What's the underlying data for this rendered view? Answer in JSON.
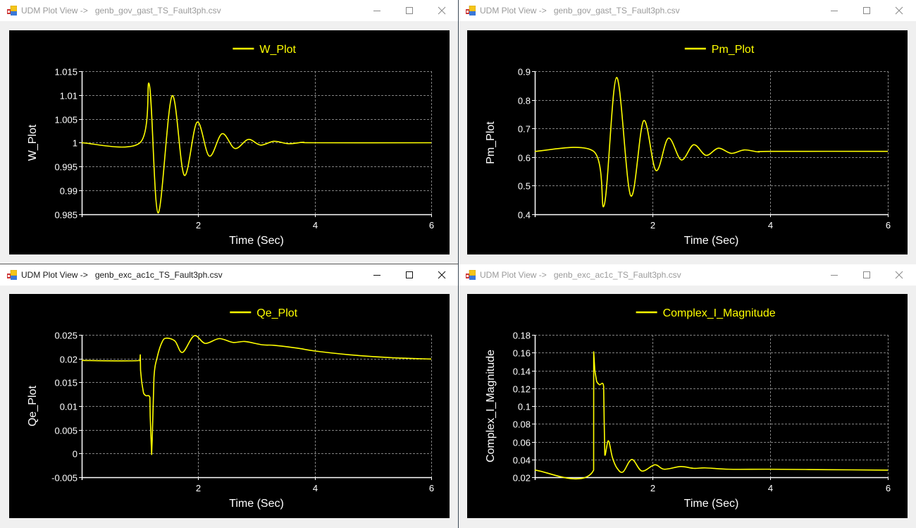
{
  "windows": [
    {
      "id": "w_plot",
      "app_title": "UDM Plot View ->",
      "file": "genb_gov_gast_TS_Fault3ph.csv",
      "active": false,
      "controls": {
        "minimize": "minimize",
        "maximize": "maximize",
        "close": "close"
      }
    },
    {
      "id": "pm_plot",
      "app_title": "UDM Plot View ->",
      "file": "genb_gov_gast_TS_Fault3ph.csv",
      "active": false,
      "controls": {
        "minimize": "minimize",
        "maximize": "maximize",
        "close": "close"
      }
    },
    {
      "id": "qe_plot",
      "app_title": "UDM Plot View ->",
      "file": "genb_exc_ac1c_TS_Fault3ph.csv",
      "active": true,
      "controls": {
        "minimize": "minimize",
        "maximize": "maximize",
        "close": "close"
      }
    },
    {
      "id": "complex_i_plot",
      "app_title": "UDM Plot View ->",
      "file": "genb_exc_ac1c_TS_Fault3ph.csv",
      "active": false,
      "controls": {
        "minimize": "minimize",
        "maximize": "maximize",
        "close": "close"
      }
    }
  ],
  "colors": {
    "series": "#ffff00",
    "background": "#000000",
    "axis": "#ffffff",
    "grid": "#808080",
    "legend_text": "#ffff00",
    "tick_text": "#ffffff"
  },
  "chart_data": [
    {
      "type": "line",
      "title": "W_Plot",
      "legend": [
        "W_Plot"
      ],
      "legend_position": "top",
      "xlabel": "Time (Sec)",
      "ylabel": "W_Plot",
      "xlim": [
        0,
        6
      ],
      "ylim": [
        0.985,
        1.015
      ],
      "xticks": [
        2,
        4,
        6
      ],
      "yticks": [
        0.985,
        0.99,
        0.995,
        1,
        1.005,
        1.01,
        1.015
      ],
      "ytick_labels": [
        "0.985",
        "0.99",
        "0.995",
        "1",
        "1.005",
        "1.01",
        "1.015"
      ],
      "grid": true,
      "series": [
        {
          "name": "W_Plot",
          "x": [
            0,
            1.0,
            1.16,
            1.31,
            1.55,
            1.76,
            1.98,
            2.19,
            2.41,
            2.63,
            2.86,
            3.07,
            3.3,
            3.55,
            3.8,
            4.0,
            6.0
          ],
          "values": [
            1.0,
            1.0,
            1.0122,
            0.9853,
            1.0098,
            0.9932,
            1.0043,
            0.9972,
            1.0019,
            0.9988,
            1.0007,
            0.9995,
            1.0003,
            0.9998,
            1.0001,
            1.0,
            1.0
          ]
        }
      ]
    },
    {
      "type": "line",
      "title": "Pm_Plot",
      "legend": [
        "Pm_Plot"
      ],
      "legend_position": "top",
      "xlabel": "Time (Sec)",
      "ylabel": "Pm_Plot",
      "xlim": [
        0,
        6
      ],
      "ylim": [
        0.4,
        0.9
      ],
      "xticks": [
        2,
        4,
        6
      ],
      "yticks": [
        0.4,
        0.5,
        0.6,
        0.7,
        0.8,
        0.9
      ],
      "ytick_labels": [
        "0.4",
        "0.5",
        "0.6",
        "0.7",
        "0.8",
        "0.9"
      ],
      "grid": true,
      "series": [
        {
          "name": "Pm_Plot",
          "x": [
            0,
            1.0,
            1.18,
            1.39,
            1.63,
            1.85,
            2.06,
            2.27,
            2.49,
            2.7,
            2.91,
            3.12,
            3.34,
            3.56,
            3.8,
            4.0,
            6.0
          ],
          "values": [
            0.62,
            0.62,
            0.432,
            0.878,
            0.465,
            0.727,
            0.553,
            0.666,
            0.59,
            0.643,
            0.606,
            0.631,
            0.613,
            0.625,
            0.618,
            0.62,
            0.62
          ]
        }
      ]
    },
    {
      "type": "line",
      "title": "Qe_Plot",
      "legend": [
        "Qe_Plot"
      ],
      "legend_position": "top",
      "xlabel": "Time (Sec)",
      "ylabel": "Qe_Plot",
      "xlim": [
        0,
        6
      ],
      "ylim": [
        -0.005,
        0.025
      ],
      "xticks": [
        2,
        4,
        6
      ],
      "yticks": [
        -0.005,
        0,
        0.005,
        0.01,
        0.015,
        0.02,
        0.025
      ],
      "ytick_labels": [
        "-0.005",
        "0",
        "0.005",
        "0.01",
        "0.015",
        "0.02",
        "0.025"
      ],
      "grid": true,
      "series": [
        {
          "name": "Qe_Plot",
          "x": [
            0,
            1.0,
            1.005,
            1.01,
            1.03,
            1.06,
            1.1,
            1.17,
            1.175,
            1.2,
            1.21,
            1.24,
            1.3,
            1.38,
            1.45,
            1.6,
            1.73,
            1.93,
            2.12,
            2.36,
            2.6,
            2.8,
            3.1,
            3.3,
            3.7,
            4.0,
            4.6,
            5.3,
            6.0
          ],
          "values": [
            0.0196,
            0.0196,
            0.0208,
            0.0175,
            0.015,
            0.0128,
            0.0122,
            0.0118,
            0.008,
            -0.0002,
            0.003,
            0.016,
            0.0205,
            0.0235,
            0.0243,
            0.0237,
            0.0213,
            0.0248,
            0.0232,
            0.0242,
            0.0234,
            0.0236,
            0.0229,
            0.0228,
            0.0222,
            0.0216,
            0.0208,
            0.0202,
            0.0199
          ]
        }
      ]
    },
    {
      "type": "line",
      "title": "Complex_I_Magnitude",
      "legend": [
        "Complex_I_Magnitude"
      ],
      "legend_position": "top",
      "xlabel": "Time (Sec)",
      "ylabel": "Complex_I_Magnitude",
      "xlim": [
        0,
        6
      ],
      "ylim": [
        0.02,
        0.18
      ],
      "xticks": [
        2,
        4,
        6
      ],
      "yticks": [
        0.02,
        0.04,
        0.06,
        0.08,
        0.1,
        0.12,
        0.14,
        0.16,
        0.18
      ],
      "ytick_labels": [
        "0.02",
        "0.04",
        "0.06",
        "0.08",
        "0.1",
        "0.12",
        "0.14",
        "0.16",
        "0.18"
      ],
      "grid": true,
      "series": [
        {
          "name": "Complex_I_Magnitude",
          "x": [
            0,
            1.0,
            1.001,
            1.02,
            1.05,
            1.1,
            1.17,
            1.18,
            1.19,
            1.25,
            1.32,
            1.4,
            1.5,
            1.65,
            1.82,
            2.04,
            2.2,
            2.48,
            2.7,
            2.9,
            3.3,
            4.0,
            5.0,
            6.0
          ],
          "values": [
            0.028,
            0.028,
            0.161,
            0.14,
            0.128,
            0.124,
            0.122,
            0.08,
            0.045,
            0.061,
            0.042,
            0.03,
            0.026,
            0.04,
            0.027,
            0.034,
            0.029,
            0.032,
            0.03,
            0.0305,
            0.029,
            0.029,
            0.0285,
            0.028
          ]
        }
      ]
    }
  ]
}
